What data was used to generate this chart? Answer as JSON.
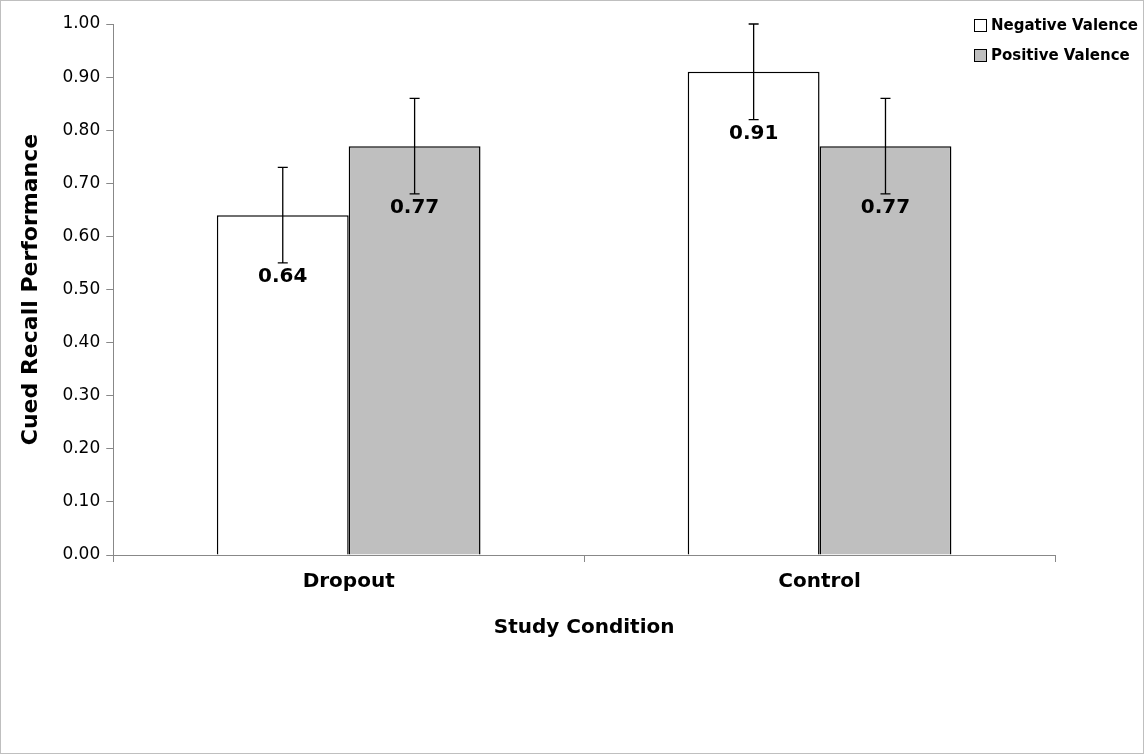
{
  "chart_data": {
    "type": "bar",
    "xlabel": "Study Condition",
    "ylabel": "Cued Recall Performance",
    "categories": [
      "Dropout",
      "Control"
    ],
    "series": [
      {
        "name": "Negative Valence",
        "color": "#ffffff",
        "values": [
          0.64,
          0.91
        ],
        "errors": [
          0.09,
          0.09
        ]
      },
      {
        "name": "Positive Valence",
        "color": "#bfbfbf",
        "values": [
          0.77,
          0.77
        ],
        "errors": [
          0.09,
          0.09
        ]
      }
    ],
    "ylim": [
      0,
      1
    ],
    "yticks": [
      {
        "value": 0,
        "label": "0.00"
      },
      {
        "value": 0.1,
        "label": "0.10"
      },
      {
        "value": 0.2,
        "label": "0.20"
      },
      {
        "value": 0.3,
        "label": "0.30"
      },
      {
        "value": 0.4,
        "label": "0.40"
      },
      {
        "value": 0.5,
        "label": "0.50"
      },
      {
        "value": 0.6,
        "label": "0.60"
      },
      {
        "value": 0.7,
        "label": "0.70"
      },
      {
        "value": 0.8,
        "label": "0.80"
      },
      {
        "value": 0.9,
        "label": "0.90"
      },
      {
        "value": 1,
        "label": "1.00"
      }
    ],
    "grid": false,
    "legend": "top right",
    "data_labels": true
  }
}
